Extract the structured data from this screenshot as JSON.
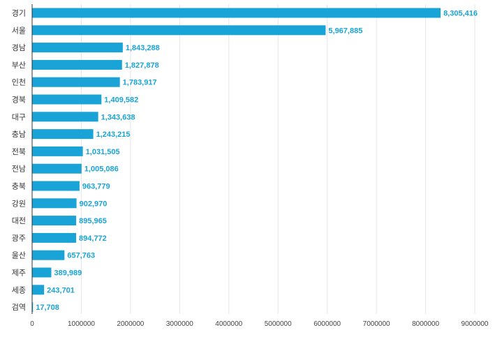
{
  "chart_data": {
    "type": "bar",
    "orientation": "horizontal",
    "categories": [
      "경기",
      "서울",
      "경남",
      "부산",
      "인천",
      "경북",
      "대구",
      "충남",
      "전북",
      "전남",
      "충북",
      "강원",
      "대전",
      "광주",
      "울산",
      "제주",
      "세종",
      "검역"
    ],
    "values": [
      8305416,
      5967885,
      1843288,
      1827878,
      1783917,
      1409582,
      1343638,
      1243215,
      1031505,
      1005086,
      963779,
      902970,
      895965,
      894772,
      657763,
      389989,
      243701,
      17708
    ],
    "value_labels": [
      "8,305,416",
      "5,967,885",
      "1,843,288",
      "1,827,878",
      "1,783,917",
      "1,409,582",
      "1,343,638",
      "1,243,215",
      "1,031,505",
      "1,005,086",
      "963,779",
      "902,970",
      "895,965",
      "894,772",
      "657,763",
      "389,989",
      "243,701",
      "17,708"
    ],
    "x_ticks": [
      "0",
      "1000000",
      "2000000",
      "3000000",
      "4000000",
      "5000000",
      "6000000",
      "7000000",
      "8000000",
      "9000000"
    ],
    "xlim": [
      0,
      9000000
    ],
    "grid": true,
    "bar_color": "#1aa3d6",
    "label_color": "#1aa3d6"
  }
}
